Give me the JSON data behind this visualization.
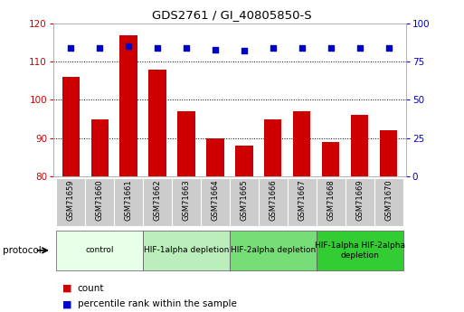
{
  "title": "GDS2761 / GI_40805850-S",
  "samples": [
    "GSM71659",
    "GSM71660",
    "GSM71661",
    "GSM71662",
    "GSM71663",
    "GSM71664",
    "GSM71665",
    "GSM71666",
    "GSM71667",
    "GSM71668",
    "GSM71669",
    "GSM71670"
  ],
  "counts": [
    106,
    95,
    117,
    108,
    97,
    90,
    88,
    95,
    97,
    89,
    96,
    92
  ],
  "percentile_ranks": [
    84,
    84,
    85,
    84,
    84,
    83,
    82,
    84,
    84,
    84,
    84,
    84
  ],
  "ylim_left": [
    80,
    120
  ],
  "ylim_right": [
    0,
    100
  ],
  "yticks_left": [
    80,
    90,
    100,
    110,
    120
  ],
  "yticks_right": [
    0,
    25,
    50,
    75,
    100
  ],
  "bar_color": "#cc0000",
  "dot_color": "#0000cc",
  "protocol_groups": [
    {
      "label": "control",
      "start": 0,
      "end": 2,
      "color": "#e8ffe8"
    },
    {
      "label": "HIF-1alpha depletion",
      "start": 3,
      "end": 5,
      "color": "#bbeebb"
    },
    {
      "label": "HIF-2alpha depletion",
      "start": 6,
      "end": 8,
      "color": "#77dd77"
    },
    {
      "label": "HIF-1alpha HIF-2alpha\ndepletion",
      "start": 9,
      "end": 11,
      "color": "#33cc33"
    }
  ],
  "bar_width": 0.6,
  "tick_bg_color": "#cccccc",
  "spine_color": "#aaaaaa"
}
